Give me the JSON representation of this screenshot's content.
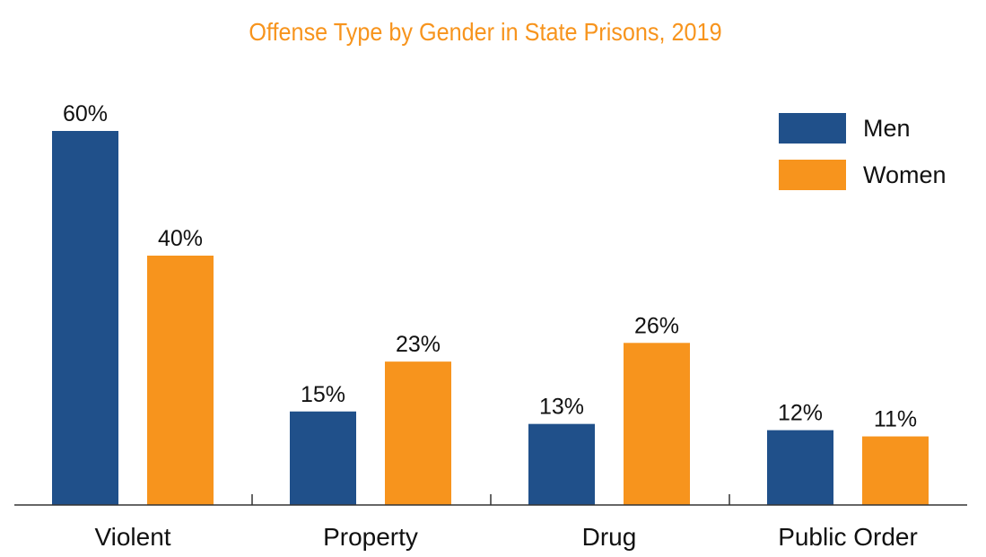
{
  "chart_data": {
    "type": "bar",
    "title": "Offense Type by Gender in State Prisons, 2019",
    "categories": [
      "Violent",
      "Property",
      "Drug",
      "Public Order"
    ],
    "series": [
      {
        "name": "Men",
        "values": [
          60,
          15,
          13,
          12
        ],
        "labels": [
          "60%",
          "15%",
          "13%",
          "12%"
        ],
        "color": "#20508a"
      },
      {
        "name": "Women",
        "values": [
          40,
          23,
          26,
          11
        ],
        "labels": [
          "40%",
          "23%",
          "26%",
          "11%"
        ],
        "color": "#f7941d"
      }
    ],
    "xlabel": "",
    "ylabel": "",
    "ylim": [
      0,
      65
    ],
    "grid": false,
    "legend": "top-right"
  },
  "colors": {
    "title": "#f7941d",
    "axis": "#333333"
  }
}
